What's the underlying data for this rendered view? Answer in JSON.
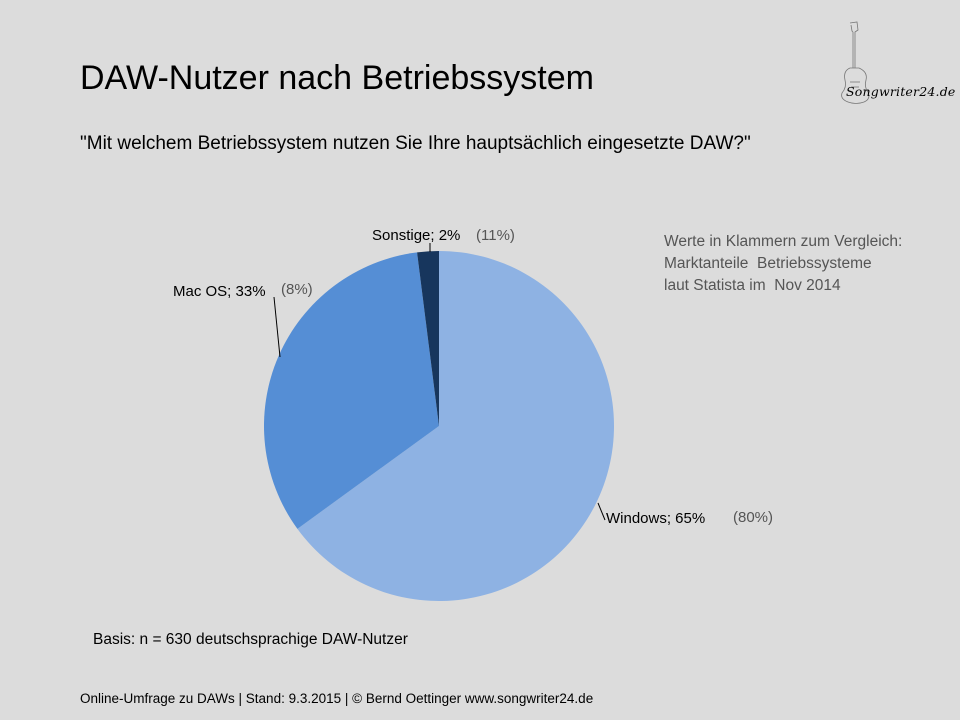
{
  "title": "DAW-Nutzer nach Betriebssystem",
  "subtitle": "\"Mit welchem Betriebssystem nutzen Sie Ihre hauptsächlich eingesetzte DAW?\"",
  "logo": {
    "text": "Songwriter24.de",
    "icon": "guitar-icon"
  },
  "note": "Werte in Klammern zum Vergleich:\nMarktanteile  Betriebssysteme\nlaut Statista im  Nov 2014",
  "basis": "Basis: n = 630 deutschsprachige DAW-Nutzer",
  "footer": "Online-Umfrage zu DAWs |  Stand: 9.3.2015  | © Bernd Oettinger www.songwriter24.de",
  "chart_data": {
    "type": "pie",
    "start_angle_deg": 0,
    "direction": "clockwise",
    "slices": [
      {
        "label": "Windows; 65%",
        "value": 65,
        "compare": "(80%)",
        "color": "#8eb2e3"
      },
      {
        "label": "Mac OS; 33%",
        "value": 33,
        "compare": "(8%)",
        "color": "#558ed5"
      },
      {
        "label": "Sonstige; 2%",
        "value": 2,
        "compare": "(11%)",
        "color": "#17365d"
      }
    ]
  }
}
